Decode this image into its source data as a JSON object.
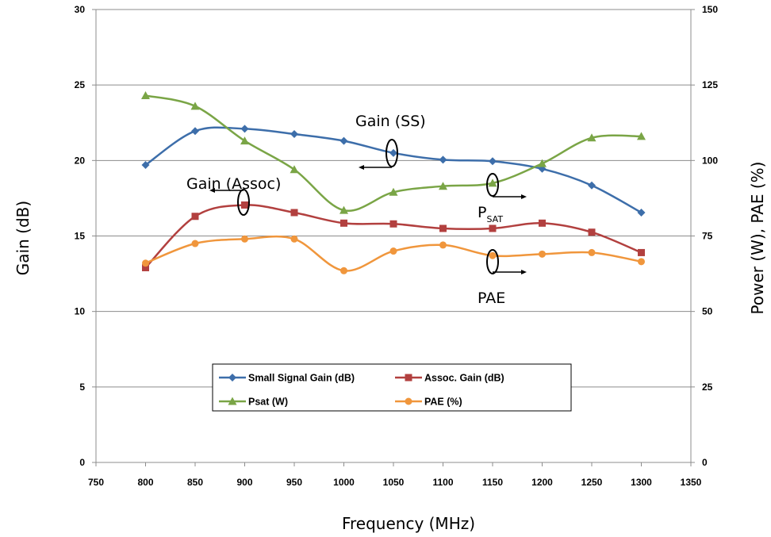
{
  "chart_data": {
    "type": "line",
    "x": [
      800,
      850,
      900,
      950,
      1000,
      1050,
      1100,
      1150,
      1200,
      1250,
      1300
    ],
    "xlabel": "Frequency (MHz)",
    "ylabel": "Gain (dB)",
    "y2label": "Power (W), PAE (%)",
    "xlim": [
      750,
      1350
    ],
    "ylim": [
      0,
      30
    ],
    "y2lim": [
      0,
      150
    ],
    "xticks": [
      "750",
      "800",
      "850",
      "900",
      "950",
      "1000",
      "1050",
      "1100",
      "1150",
      "1200",
      "1250",
      "1300",
      "1350"
    ],
    "yticks": [
      "0",
      "5",
      "10",
      "15",
      "20",
      "25",
      "30"
    ],
    "y2ticks": [
      "0",
      "25",
      "50",
      "75",
      "100",
      "125",
      "150"
    ],
    "grid": "horizontal",
    "legend_position": "lower-center",
    "series": [
      {
        "name": "Small Signal Gain (dB)",
        "axis": "left",
        "color": "#3d6eaa",
        "marker": "diamond",
        "values": [
          19.7,
          21.95,
          22.1,
          21.75,
          21.3,
          20.5,
          20.05,
          19.95,
          19.45,
          18.35,
          16.55
        ]
      },
      {
        "name": "Assoc. Gain (dB)",
        "axis": "left",
        "color": "#b2403f",
        "marker": "square",
        "values": [
          12.9,
          16.3,
          17.05,
          16.55,
          15.85,
          15.8,
          15.5,
          15.5,
          15.85,
          15.25,
          13.9
        ]
      },
      {
        "name": "Psat (W)",
        "axis": "right",
        "color": "#7aa546",
        "marker": "triangle",
        "values": [
          121.5,
          118,
          106.5,
          97,
          83.5,
          89.5,
          91.5,
          92.5,
          99,
          107.5,
          108
        ]
      },
      {
        "name": "PAE (%)",
        "axis": "right",
        "color": "#f0963c",
        "marker": "circle",
        "values": [
          66,
          72.5,
          74,
          74,
          63.5,
          70,
          72,
          68.5,
          69,
          69.5,
          66.5
        ]
      }
    ],
    "annotations": [
      {
        "text": "Gain (SS)"
      },
      {
        "text": "Gain (Assoc)"
      },
      {
        "text": "P",
        "subscript": "SAT"
      },
      {
        "text": "PAE"
      }
    ]
  }
}
